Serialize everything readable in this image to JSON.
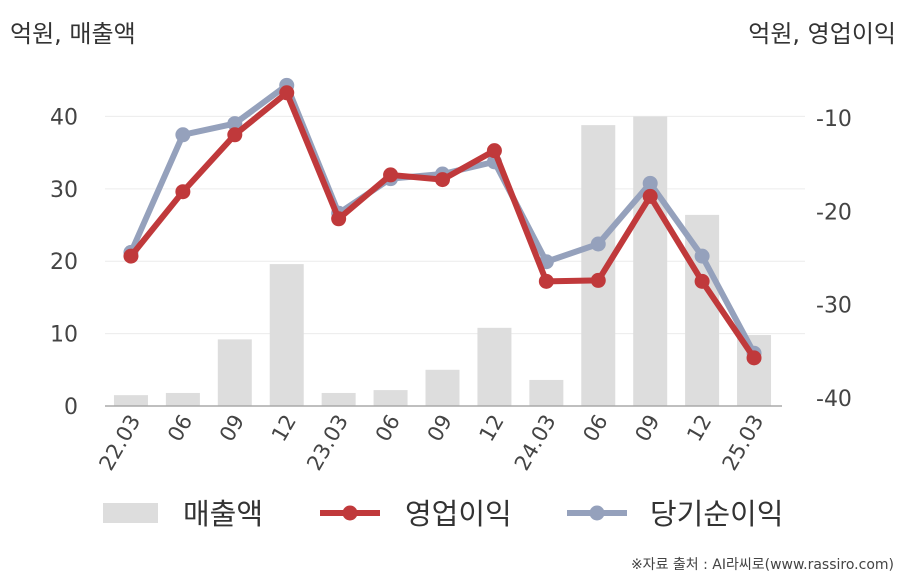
{
  "units": {
    "left": "억원, 매출액",
    "right": "억원, 영업이익"
  },
  "source": "※자료 출처 : AI라씨로(www.rassiro.com)",
  "chart_data": {
    "type": "bar+line",
    "categories": [
      "22.03",
      "06",
      "09",
      "12",
      "23.03",
      "06",
      "09",
      "12",
      "24.03",
      "06",
      "09",
      "12",
      "25.03"
    ],
    "left_axis": {
      "ylim": [
        0,
        46
      ],
      "ticks": [
        0,
        10,
        20,
        30,
        40
      ]
    },
    "right_axis": {
      "ylim": [
        -41,
        -6.3
      ],
      "ticks": [
        -10,
        -20,
        -30,
        -40
      ]
    },
    "series": [
      {
        "name": "매출액",
        "type": "bar",
        "axis": "left",
        "color": "#dddddd",
        "values": [
          1.5,
          1.8,
          9.2,
          19.6,
          1.8,
          2.2,
          5.0,
          10.8,
          3.6,
          38.8,
          40.0,
          26.4,
          9.8
        ]
      },
      {
        "name": "영업이익",
        "type": "line",
        "axis": "right",
        "color": "#c0393b",
        "values": [
          -24.8,
          -17.9,
          -11.8,
          -7.3,
          -20.8,
          -16.1,
          -16.6,
          -13.5,
          -27.5,
          -27.4,
          -18.4,
          -27.5,
          -35.7
        ]
      },
      {
        "name": "당기순이익",
        "type": "line",
        "axis": "right",
        "color": "#95a1bc",
        "values": [
          -24.4,
          -11.8,
          -10.6,
          -6.5,
          -20.2,
          -16.5,
          -16.0,
          -14.7,
          -25.4,
          -23.5,
          -17.0,
          -24.8,
          -35.2
        ]
      }
    ]
  }
}
